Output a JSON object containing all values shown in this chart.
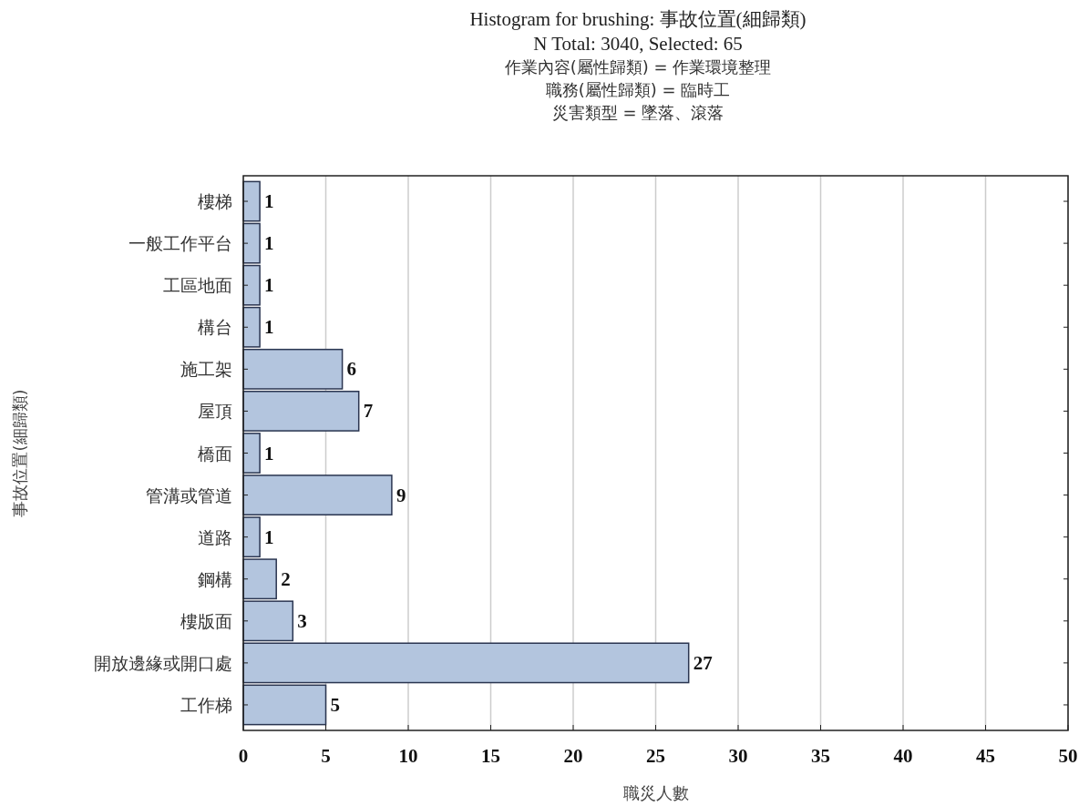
{
  "chart_data": {
    "type": "bar",
    "orientation": "horizontal",
    "title": "Histogram for brushing: 事故位置(細歸類)",
    "subtitle": "N Total: 3040, Selected: 65",
    "annotations": [
      "作業內容(屬性歸類) = 作業環境整理",
      "職務(屬性歸類) = 臨時工",
      "災害類型 = 墜落、滾落"
    ],
    "xlabel": "職災人數",
    "ylabel": "事故位置(細歸類)",
    "categories": [
      "樓梯",
      "一般工作平台",
      "工區地面",
      "構台",
      "施工架",
      "屋頂",
      "橋面",
      "管溝或管道",
      "道路",
      "鋼構",
      "樓版面",
      "開放邊緣或開口處",
      "工作梯"
    ],
    "values": [
      1,
      1,
      1,
      1,
      6,
      7,
      1,
      9,
      1,
      2,
      3,
      27,
      5
    ],
    "color": "#b3c5de",
    "xlim": [
      0,
      50
    ],
    "xticks": [
      0,
      5,
      10,
      15,
      20,
      25,
      30,
      35,
      40,
      45,
      50
    ],
    "grid": "x",
    "data_labels": true
  }
}
